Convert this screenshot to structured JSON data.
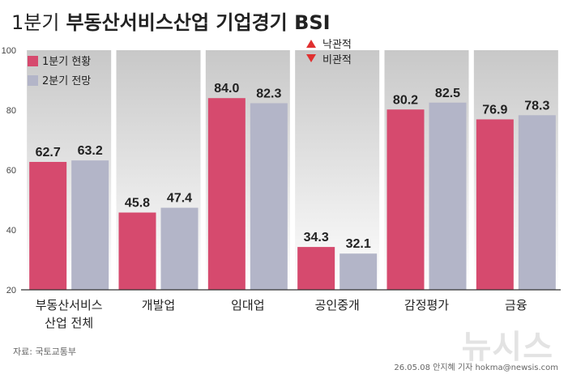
{
  "chart_data": {
    "type": "bar",
    "title_prefix": "1분기",
    "title": "부동산서비스산업 기업경기 BSI",
    "categories": [
      "부동산서비스\n산업 전체",
      "개발업",
      "임대업",
      "공인중개",
      "감정평가",
      "금융"
    ],
    "series": [
      {
        "name": "1분기 현황",
        "color": "#d64a6e",
        "values": [
          62.7,
          45.8,
          84.0,
          34.3,
          80.2,
          76.9
        ]
      },
      {
        "name": "2분기 전망",
        "color": "#b3b5c8",
        "values": [
          63.2,
          47.4,
          82.3,
          32.1,
          82.5,
          78.3
        ]
      }
    ],
    "ylim": [
      20,
      100
    ],
    "yticks": [
      20,
      40,
      60,
      80,
      100
    ],
    "xlabel": "",
    "ylabel": "",
    "grid": false,
    "legend": "top-left",
    "annotation": {
      "up_label": "낙관적",
      "down_label": "비관적",
      "up_color": "#e03030",
      "down_color": "#e03030"
    },
    "colors": {
      "band_dark": "#c8c8c8",
      "band_light": "#ffffff",
      "text": "#222222"
    }
  },
  "footer": {
    "source": "자료: 국토교통부",
    "credit": "26.05.08 안지혜 기자 hokma@newsis.com",
    "watermark": "뉴시스"
  }
}
